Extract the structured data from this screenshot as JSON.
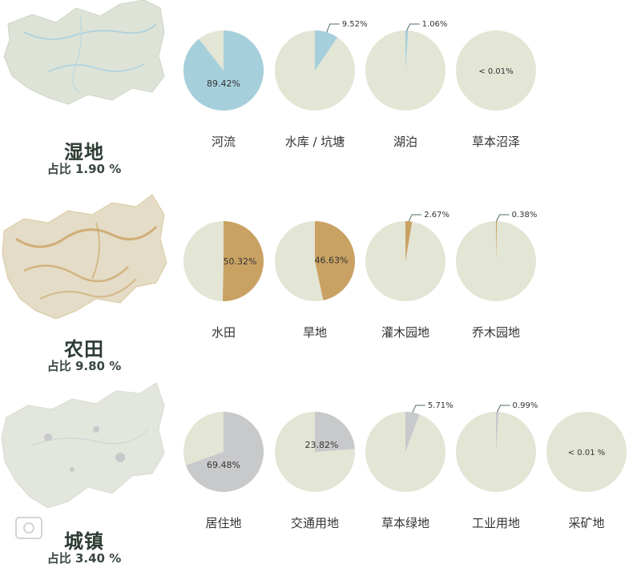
{
  "colors": {
    "background_pie": "#e3e5d5",
    "wetland": "#a6cfdc",
    "farmland": "#c9a263",
    "urban": "#c8c9cb",
    "leader": "#4d6b62"
  },
  "sections": [
    {
      "title": "湿地",
      "share": "占比 1.90 %",
      "map_icon": "wetland-region-map",
      "color_key": "wetland"
    },
    {
      "title": "农田",
      "share": "占比 9.80 %",
      "map_icon": "farmland-region-map",
      "color_key": "farmland"
    },
    {
      "title": "城镇",
      "share": "占比 3.40 %",
      "map_icon": "urban-region-map",
      "color_key": "urban"
    }
  ],
  "chart_data": [
    {
      "type": "pie",
      "group": "湿地",
      "slices": [
        {
          "label": "河流",
          "value": 89.42,
          "text": "89.42%"
        },
        {
          "label": "水库 / 坑塘",
          "value": 9.52,
          "text": "9.52%"
        },
        {
          "label": "湖泊",
          "value": 1.06,
          "text": "1.06%"
        },
        {
          "label": "草本沼泽",
          "value": 0.005,
          "text": "< 0.01%"
        }
      ]
    },
    {
      "type": "pie",
      "group": "农田",
      "slices": [
        {
          "label": "水田",
          "value": 50.32,
          "text": "50.32%"
        },
        {
          "label": "旱地",
          "value": 46.63,
          "text": "46.63%"
        },
        {
          "label": "灌木园地",
          "value": 2.67,
          "text": "2.67%"
        },
        {
          "label": "乔木园地",
          "value": 0.38,
          "text": "0.38%"
        }
      ]
    },
    {
      "type": "pie",
      "group": "城镇",
      "slices": [
        {
          "label": "居住地",
          "value": 69.48,
          "text": "69.48%"
        },
        {
          "label": "交通用地",
          "value": 23.82,
          "text": "23.82%"
        },
        {
          "label": "草本绿地",
          "value": 5.71,
          "text": "5.71%"
        },
        {
          "label": "工业用地",
          "value": 0.99,
          "text": "0.99%"
        },
        {
          "label": "采矿地",
          "value": 0.005,
          "text": "< 0.01 %"
        }
      ]
    }
  ]
}
